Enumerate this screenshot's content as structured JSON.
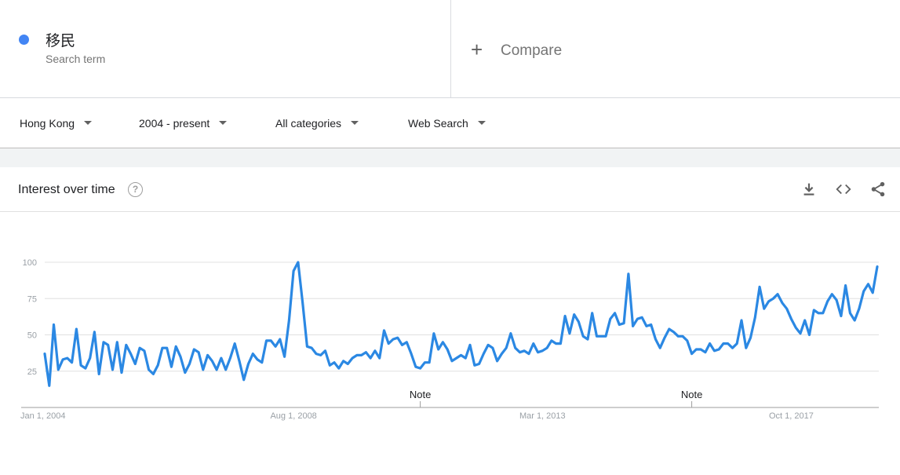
{
  "search_term": {
    "name": "移民",
    "subtitle": "Search term",
    "color": "#4285f4"
  },
  "compare": {
    "label": "Compare"
  },
  "filters": {
    "region": "Hong Kong",
    "time_range": "2004 - present",
    "category": "All categories",
    "search_type": "Web Search"
  },
  "card": {
    "title": "Interest over time",
    "icons": [
      "help-icon",
      "download-icon",
      "embed-icon",
      "share-icon"
    ]
  },
  "chart_data": {
    "type": "line",
    "title": "",
    "xlabel": "",
    "ylabel": "",
    "ylim": [
      0,
      100
    ],
    "y_ticks": [
      25,
      50,
      75,
      100
    ],
    "x_tick_labels": [
      "Jan 1, 2004",
      "Aug 1, 2008",
      "Mar 1, 2013",
      "Oct 1, 2017"
    ],
    "x_tick_indices": [
      0,
      55,
      110,
      165
    ],
    "annotations": [
      {
        "label": "Note",
        "index": 83
      },
      {
        "label": "Note",
        "index": 143
      }
    ],
    "grid": true,
    "legend": "none",
    "line_color": "#2b88e3",
    "series": [
      {
        "values": [
          37,
          15,
          57,
          26,
          33,
          34,
          31,
          54,
          29,
          27,
          34,
          52,
          23,
          45,
          43,
          26,
          45,
          24,
          43,
          37,
          30,
          41,
          39,
          26,
          23,
          29,
          41,
          41,
          28,
          42,
          35,
          24,
          30,
          40,
          38,
          26,
          36,
          32,
          26,
          34,
          26,
          34,
          44,
          32,
          19,
          30,
          37,
          33,
          31,
          46,
          46,
          42,
          47,
          35,
          60,
          94,
          100,
          72,
          42,
          41,
          37,
          36,
          39,
          29,
          31,
          27,
          32,
          30,
          34,
          36,
          36,
          38,
          34,
          39,
          34,
          53,
          44,
          47,
          48,
          43,
          45,
          37,
          28,
          27,
          31,
          31,
          51,
          40,
          45,
          40,
          32,
          34,
          36,
          34,
          43,
          29,
          30,
          37,
          43,
          41,
          32,
          37,
          41,
          51,
          41,
          38,
          39,
          37,
          44,
          38,
          39,
          41,
          46,
          44,
          44,
          63,
          51,
          64,
          59,
          49,
          47,
          65,
          49,
          49,
          49,
          61,
          65,
          57,
          58,
          92,
          56,
          61,
          62,
          56,
          57,
          47,
          41,
          48,
          54,
          52,
          49,
          49,
          46,
          37,
          40,
          40,
          38,
          44,
          39,
          40,
          44,
          44,
          41,
          44,
          60,
          41,
          48,
          62,
          83,
          68,
          73,
          75,
          78,
          72,
          68,
          61,
          55,
          51,
          60,
          50,
          67,
          65,
          65,
          73,
          78,
          74,
          63,
          84,
          65,
          60,
          68,
          80,
          85,
          79,
          97
        ]
      }
    ]
  }
}
